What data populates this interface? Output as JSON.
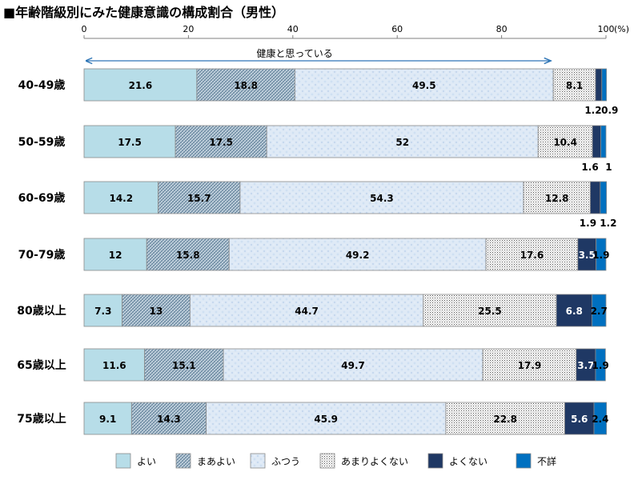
{
  "title": "■年齢階級別にみた健康意識の構成割合（男性）",
  "chart_data": {
    "type": "bar",
    "stacked": true,
    "orientation": "horizontal",
    "title": "■年齢階級別にみた健康意識の構成割合（男性）",
    "unit": "(%)",
    "xlim": [
      0,
      100
    ],
    "ticks": [
      "0",
      "20",
      "40",
      "60",
      "80",
      "100"
    ],
    "annotation": "健康と思っている",
    "legend_position": "bottom",
    "categories": [
      "40-49歳",
      "50-59歳",
      "60-69歳",
      "70-79歳",
      "80歳以上",
      "65歳以上",
      "75歳以上"
    ],
    "series": [
      {
        "name": "よい",
        "color": "#b7dde8",
        "values": [
          21.6,
          17.5,
          14.2,
          12,
          7.3,
          11.6,
          9.1
        ]
      },
      {
        "name": "まあよい",
        "color": "#9fb9cc",
        "values": [
          18.8,
          17.5,
          15.7,
          15.8,
          13,
          15.1,
          14.3
        ]
      },
      {
        "name": "ふつう",
        "color": "#dceaf7",
        "values": [
          49.5,
          52,
          54.3,
          49.2,
          44.7,
          49.7,
          45.9
        ]
      },
      {
        "name": "あまりよくない",
        "color": "#f2f2f2",
        "values": [
          8.1,
          10.4,
          12.8,
          17.6,
          25.5,
          17.9,
          22.8
        ]
      },
      {
        "name": "よくない",
        "color": "#1f3864",
        "values": [
          1.2,
          1.6,
          1.9,
          3.5,
          6.8,
          3.7,
          5.6
        ]
      },
      {
        "name": "不詳",
        "color": "#0070c0",
        "values": [
          0.9,
          1,
          1.2,
          1.9,
          2.7,
          1.9,
          2.4
        ]
      }
    ],
    "data_labels": [
      [
        "21.6",
        "18.8",
        "49.5",
        "8.1",
        "1.2",
        "0.9"
      ],
      [
        "17.5",
        "17.5",
        "52",
        "10.4",
        "1.6",
        "1"
      ],
      [
        "14.2",
        "15.7",
        "54.3",
        "12.8",
        "1.9",
        "1.2"
      ],
      [
        "12",
        "15.8",
        "49.2",
        "17.6",
        "3.5",
        "1.9"
      ],
      [
        "7.3",
        "13",
        "44.7",
        "25.5",
        "6.8",
        "2.7"
      ],
      [
        "11.6",
        "15.1",
        "49.7",
        "17.9",
        "3.7",
        "1.9"
      ],
      [
        "9.1",
        "14.3",
        "45.9",
        "22.8",
        "5.6",
        "2.4"
      ]
    ]
  }
}
